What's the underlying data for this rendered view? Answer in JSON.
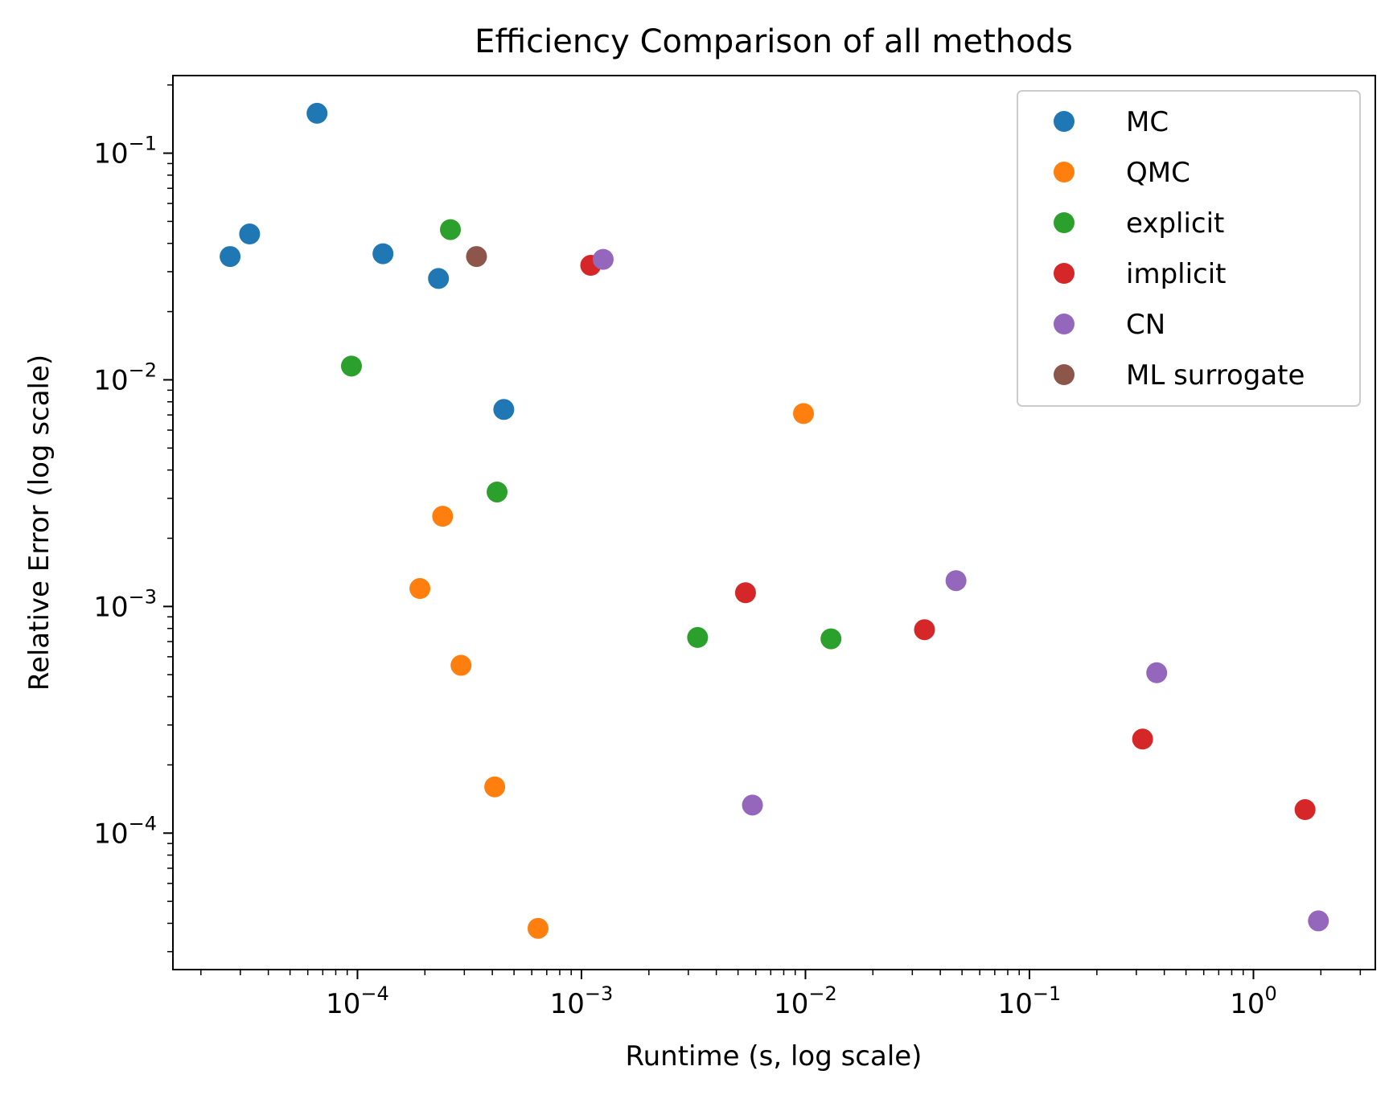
{
  "chart_data": {
    "type": "scatter",
    "title": "Efficiency Comparison of all methods",
    "xlabel": "Runtime (s, log scale)",
    "ylabel": "Relative Error (log scale)",
    "xscale": "log",
    "yscale": "log",
    "xlim": [
      1.5e-05,
      3.5
    ],
    "ylim": [
      2.5e-05,
      0.22
    ],
    "x_ticks": [
      {
        "value": 0.0001,
        "base": "10",
        "exp": "−4"
      },
      {
        "value": 0.001,
        "base": "10",
        "exp": "−3"
      },
      {
        "value": 0.01,
        "base": "10",
        "exp": "−2"
      },
      {
        "value": 0.1,
        "base": "10",
        "exp": "−1"
      },
      {
        "value": 1,
        "base": "10",
        "exp": "0"
      }
    ],
    "y_ticks": [
      {
        "value": 0.0001,
        "base": "10",
        "exp": "−4"
      },
      {
        "value": 0.001,
        "base": "10",
        "exp": "−3"
      },
      {
        "value": 0.01,
        "base": "10",
        "exp": "−2"
      },
      {
        "value": 0.1,
        "base": "10",
        "exp": "−1"
      }
    ],
    "grid": false,
    "legend_position": "top-right",
    "series": [
      {
        "name": "MC",
        "color": "#1f77b4",
        "points": [
          [
            2.7e-05,
            0.035
          ],
          [
            3.3e-05,
            0.044
          ],
          [
            6.6e-05,
            0.15
          ],
          [
            0.00013,
            0.036
          ],
          [
            0.00023,
            0.028
          ],
          [
            0.00045,
            0.0074
          ]
        ]
      },
      {
        "name": "QMC",
        "color": "#ff7f0e",
        "points": [
          [
            0.00019,
            0.0012
          ],
          [
            0.00024,
            0.0025
          ],
          [
            0.00029,
            0.00055
          ],
          [
            0.00041,
            0.00016
          ],
          [
            0.00064,
            3.8e-05
          ],
          [
            0.0098,
            0.0071
          ]
        ]
      },
      {
        "name": "explicit",
        "color": "#2ca02c",
        "points": [
          [
            9.4e-05,
            0.0115
          ],
          [
            0.00026,
            0.046
          ],
          [
            0.00042,
            0.0032
          ],
          [
            0.0033,
            0.00073
          ],
          [
            0.013,
            0.00072
          ]
        ]
      },
      {
        "name": "implicit",
        "color": "#d62728",
        "points": [
          [
            0.0011,
            0.032
          ],
          [
            0.0054,
            0.00115
          ],
          [
            0.034,
            0.00079
          ],
          [
            0.32,
            0.00026
          ],
          [
            1.7,
            0.000127
          ]
        ]
      },
      {
        "name": "CN",
        "color": "#9467bd",
        "points": [
          [
            0.00125,
            0.034
          ],
          [
            0.0058,
            0.000133
          ],
          [
            0.047,
            0.0013
          ],
          [
            0.37,
            0.00051
          ],
          [
            1.95,
            4.1e-05
          ]
        ]
      },
      {
        "name": "ML surrogate",
        "color": "#8c564b",
        "points": [
          [
            0.00034,
            0.035
          ]
        ]
      }
    ]
  }
}
